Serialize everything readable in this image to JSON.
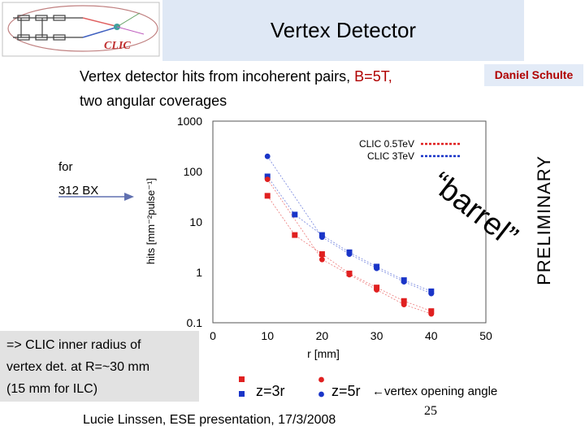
{
  "slide": {
    "title": "Vertex Detector",
    "subtitle_line1_a": "Vertex detector hits from incoherent pairs, ",
    "subtitle_line1_b": "B=5T,",
    "subtitle_line2": "two angular coverages",
    "author": "Daniel Schulte",
    "preliminary": "PRELIMINARY",
    "for_label": "for",
    "bx_label": "312 BX",
    "barrel_word": "“barrel”",
    "note_lines": [
      "=> CLIC inner radius of",
      "vertex det. at R=~30 mm",
      "(15 mm for ILC)"
    ],
    "footer": "Lucie Linssen, ESE presentation, 17/3/2008",
    "page_number": "25",
    "arrow_note": "←vertex opening angle",
    "logo_text": "CLIC",
    "colors": {
      "red": "#e02020",
      "blue": "#1a35c8",
      "title_band": "#dfe8f5",
      "author": "#b00000"
    }
  },
  "chart_data": {
    "type": "scatter",
    "xlabel": "r [mm]",
    "ylabel": "hits [mm⁻²pulse⁻¹]",
    "xlim": [
      0,
      50
    ],
    "ylim": [
      0.1,
      1000
    ],
    "yscale": "log",
    "xticks": [
      "0",
      "10",
      "20",
      "30",
      "40",
      "50"
    ],
    "yticks": [
      "0.1",
      "1",
      "10",
      "100",
      "1000"
    ],
    "grid": true,
    "legend_series": [
      {
        "label": "CLIC 0.5TeV",
        "color": "#e02020"
      },
      {
        "label": "CLIC 3TeV",
        "color": "#1a35c8"
      }
    ],
    "legend_markers": [
      {
        "label": "z=3r"
      },
      {
        "label": "z=5r"
      }
    ],
    "series": [
      {
        "name": "CLIC 3TeV z=3r",
        "color": "#1a35c8",
        "x": [
          10,
          15,
          20,
          25,
          30,
          35,
          40
        ],
        "y": [
          80,
          14,
          5.5,
          2.5,
          1.3,
          0.7,
          0.42
        ]
      },
      {
        "name": "CLIC 3TeV z=5r",
        "color": "#1a35c8",
        "x": [
          10,
          20,
          25,
          30,
          35,
          40
        ],
        "y": [
          200,
          5.0,
          2.3,
          1.2,
          0.65,
          0.38
        ]
      },
      {
        "name": "CLIC 0.5TeV z=3r",
        "color": "#e02020",
        "x": [
          10,
          15,
          20,
          25,
          30,
          35,
          40
        ],
        "y": [
          33,
          5.5,
          2.3,
          0.95,
          0.5,
          0.27,
          0.17
        ]
      },
      {
        "name": "CLIC 0.5TeV z=5r",
        "color": "#e02020",
        "x": [
          10,
          20,
          25,
          30,
          35,
          40
        ],
        "y": [
          70,
          1.8,
          0.9,
          0.45,
          0.23,
          0.15
        ]
      }
    ]
  }
}
